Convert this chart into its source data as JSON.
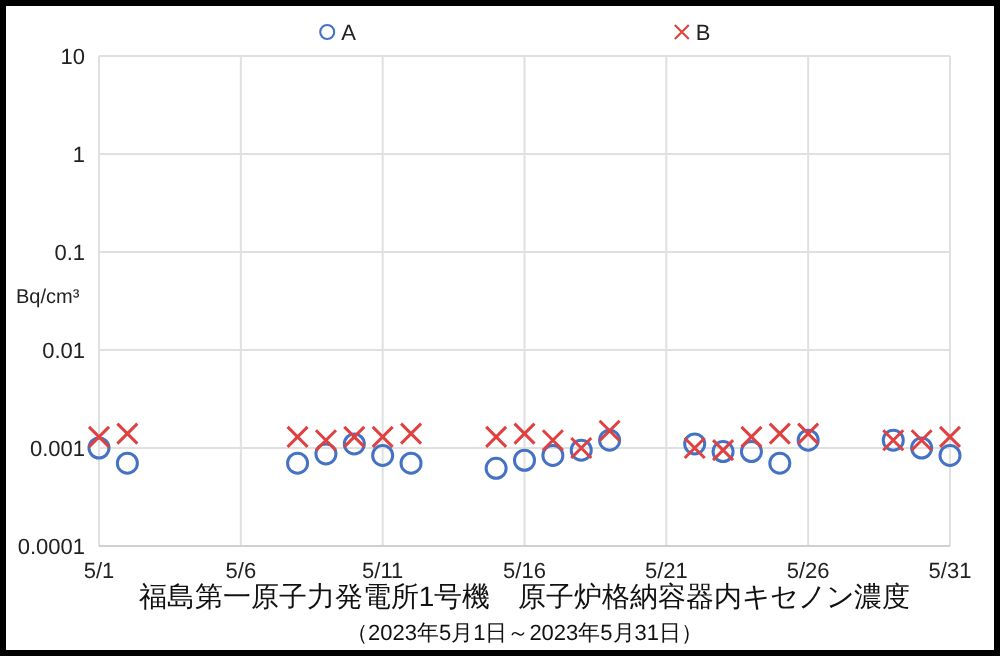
{
  "chart_data": {
    "type": "scatter",
    "title": "福島第一原子力発電所1号機　原子炉格納容器内キセノン濃度",
    "subtitle": "（2023年5月1日～2023年5月31日）",
    "ylabel": "Bq/cm³",
    "x": [
      "2023-05-01",
      "2023-05-02",
      "2023-05-08",
      "2023-05-09",
      "2023-05-10",
      "2023-05-11",
      "2023-05-12",
      "2023-05-15",
      "2023-05-16",
      "2023-05-17",
      "2023-05-18",
      "2023-05-19",
      "2023-05-22",
      "2023-05-23",
      "2023-05-24",
      "2023-05-25",
      "2023-05-26",
      "2023-05-29",
      "2023-05-30",
      "2023-05-31"
    ],
    "series": [
      {
        "name": "A",
        "color": "#4472c4",
        "marker": "circle",
        "values": [
          0.001,
          0.0007,
          0.0007,
          0.00087,
          0.0011,
          0.00084,
          0.0007,
          0.00062,
          0.00075,
          0.00084,
          0.00095,
          0.0012,
          0.0011,
          0.00092,
          0.00092,
          0.0007,
          0.0012,
          0.0012,
          0.001,
          0.00084
        ]
      },
      {
        "name": "B",
        "color": "#e04040",
        "marker": "cross",
        "values": [
          0.0013,
          0.0014,
          0.0013,
          0.0012,
          0.0013,
          0.0013,
          0.0014,
          0.0013,
          0.0014,
          0.0012,
          0.001,
          0.0015,
          0.001,
          0.00095,
          0.0013,
          0.0014,
          0.0014,
          0.0012,
          0.0012,
          0.0013
        ]
      }
    ],
    "xlim": [
      "2023-05-01",
      "2023-05-31"
    ],
    "xticks": [
      {
        "value": "2023-05-01",
        "label": "5/1"
      },
      {
        "value": "2023-05-06",
        "label": "5/6"
      },
      {
        "value": "2023-05-11",
        "label": "5/11"
      },
      {
        "value": "2023-05-16",
        "label": "5/16"
      },
      {
        "value": "2023-05-21",
        "label": "5/21"
      },
      {
        "value": "2023-05-26",
        "label": "5/26"
      },
      {
        "value": "2023-05-31",
        "label": "5/31"
      }
    ],
    "log": "y",
    "ylim": [
      0.0001,
      10
    ],
    "yticks": [
      0.0001,
      0.001,
      0.01,
      0.1,
      1,
      10
    ],
    "grid": true,
    "legend": "top"
  }
}
